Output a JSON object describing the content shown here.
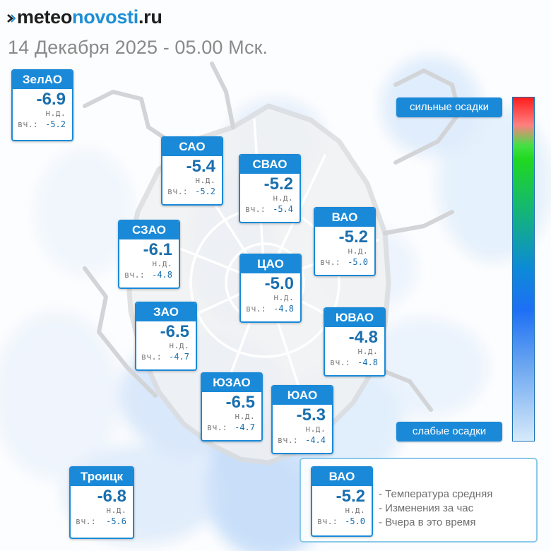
{
  "header": {
    "logo": {
      "part1": "meteo",
      "part2": "novosti",
      "part3": ".ru"
    },
    "datetime": "14 Декабря 2025 - 05.00 Мск."
  },
  "districts": [
    {
      "id": "zelao",
      "name": "ЗелАО",
      "temp": "-6.9",
      "change": "н.д.",
      "yesterday_label": "вч.:",
      "yesterday": "-5.2"
    },
    {
      "id": "sao",
      "name": "САО",
      "temp": "-5.4",
      "change": "н.д.",
      "yesterday_label": "вч.:",
      "yesterday": "-5.2"
    },
    {
      "id": "svao",
      "name": "СВАО",
      "temp": "-5.2",
      "change": "н.д.",
      "yesterday_label": "вч.:",
      "yesterday": "-5.4"
    },
    {
      "id": "vao",
      "name": "ВАО",
      "temp": "-5.2",
      "change": "н.д.",
      "yesterday_label": "вч.:",
      "yesterday": "-5.0"
    },
    {
      "id": "szao",
      "name": "СЗАО",
      "temp": "-6.1",
      "change": "н.д.",
      "yesterday_label": "вч.:",
      "yesterday": "-4.8"
    },
    {
      "id": "cao",
      "name": "ЦАО",
      "temp": "-5.0",
      "change": "н.д.",
      "yesterday_label": "вч.:",
      "yesterday": "-4.8"
    },
    {
      "id": "zao",
      "name": "ЗАО",
      "temp": "-6.5",
      "change": "н.д.",
      "yesterday_label": "вч.:",
      "yesterday": "-4.7"
    },
    {
      "id": "yuvao",
      "name": "ЮВАО",
      "temp": "-4.8",
      "change": "н.д.",
      "yesterday_label": "вч.:",
      "yesterday": "-4.8"
    },
    {
      "id": "yuzao",
      "name": "ЮЗАО",
      "temp": "-6.5",
      "change": "н.д.",
      "yesterday_label": "вч.:",
      "yesterday": "-4.7"
    },
    {
      "id": "yuao",
      "name": "ЮАО",
      "temp": "-5.3",
      "change": "н.д.",
      "yesterday_label": "вч.:",
      "yesterday": "-4.4"
    },
    {
      "id": "troitsk",
      "name": "Троицк",
      "temp": "-6.8",
      "change": "н.д.",
      "yesterday_label": "вч.:",
      "yesterday": "-5.6"
    }
  ],
  "precip_scale": {
    "top_label": "сильные осадки",
    "bottom_label": "слабые осадки",
    "colors": [
      "#ff1d1d",
      "#44e044",
      "#1e6ff5",
      "#d7eafb"
    ]
  },
  "legend": {
    "sample": {
      "name": "ВАО",
      "temp": "-5.2",
      "change": "н.д.",
      "yesterday_label": "вч.:",
      "yesterday": "-5.0"
    },
    "lines": [
      "- Температура средняя",
      "- Изменения за час",
      "- Вчера в это время"
    ]
  },
  "colors": {
    "accent": "#1a8ad8",
    "value": "#1a6fae",
    "muted": "#7d7d7d",
    "logo_blue": "#1e8fd6"
  }
}
